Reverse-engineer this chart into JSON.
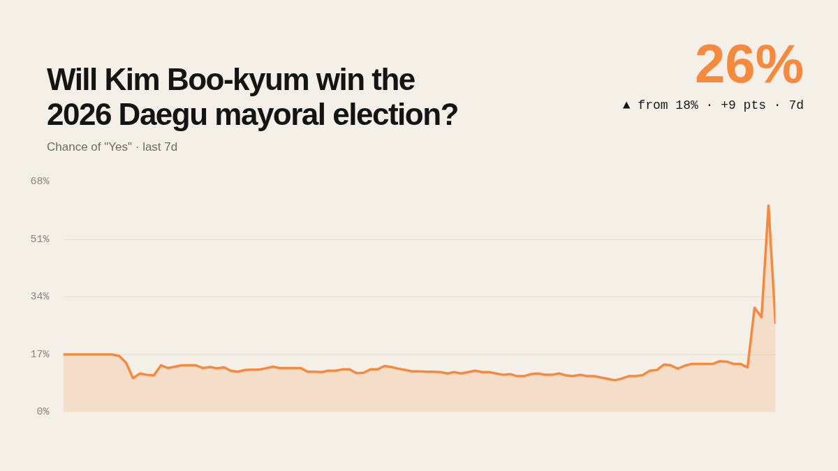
{
  "chart_data": {
    "type": "area",
    "title": "Will Kim Boo-kyum win the\n2026 Daegu mayoral election?",
    "subtitle": "Chance of \"Yes\" · last 7d",
    "annotations": [
      "26%",
      "▲ from 18% · +9 pts · 7d"
    ],
    "ylim": [
      0,
      68
    ],
    "yticks": [
      {
        "value": 0,
        "label": "0%"
      },
      {
        "value": 17,
        "label": "17%"
      },
      {
        "value": 34,
        "label": "34%"
      },
      {
        "value": 51,
        "label": "51%"
      },
      {
        "value": 68,
        "label": "68%"
      }
    ],
    "tick_labels": "y",
    "grid": "y",
    "line_style": "solid",
    "categories": [
      null,
      null,
      null,
      null,
      null,
      null,
      null,
      null,
      null,
      null,
      null,
      null,
      null,
      null,
      null,
      null,
      null,
      null,
      null,
      null,
      null,
      null,
      null,
      null,
      null,
      null,
      null,
      null,
      null,
      null,
      null,
      null,
      null,
      null,
      null,
      null,
      null,
      null,
      null,
      null,
      null,
      null,
      null,
      null,
      null,
      null,
      null,
      null,
      null,
      null,
      null,
      null,
      null,
      null,
      null,
      null,
      null,
      null,
      null,
      null,
      null,
      null,
      null,
      null,
      null,
      null,
      null,
      null,
      null,
      null,
      null,
      null,
      null,
      null,
      null,
      null,
      null,
      null,
      null,
      null,
      null,
      null,
      null,
      null,
      null,
      null,
      null,
      null,
      null,
      null,
      null,
      null,
      null,
      null,
      null,
      null,
      null,
      null,
      null,
      null,
      null,
      null,
      null
    ],
    "series": [
      {
        "color": "#f58a3f",
        "values": [
          17,
          17,
          17,
          17,
          17,
          17,
          17,
          17,
          16.6,
          14.6,
          10,
          11.4,
          11,
          10.8,
          13.8,
          13,
          13.4,
          13.8,
          13.8,
          13.8,
          13,
          13.3,
          12.9,
          13.2,
          12.2,
          11.9,
          12.4,
          12.5,
          12.5,
          12.9,
          13.4,
          13,
          13,
          13,
          13,
          11.9,
          11.9,
          11.8,
          12.2,
          12.2,
          12.6,
          12.6,
          11.5,
          11.6,
          12.6,
          12.6,
          13.6,
          13.3,
          12.8,
          12.4,
          12,
          12,
          11.9,
          11.9,
          11.8,
          11.4,
          11.8,
          11.4,
          11.8,
          12.2,
          11.8,
          11.8,
          11.4,
          11,
          11.2,
          10.6,
          10.6,
          11.2,
          11.4,
          11,
          11,
          11.4,
          10.8,
          10.6,
          11,
          10.6,
          10.6,
          10.2,
          9.8,
          9.4,
          9.9,
          10.6,
          10.6,
          10.9,
          12.2,
          12.4,
          14,
          13.8,
          12.8,
          13.7,
          14.2,
          14.2,
          14.2,
          14.2,
          15,
          14.9,
          14.2,
          14.2,
          13.2,
          30.8,
          28,
          61,
          26
        ]
      }
    ]
  }
}
